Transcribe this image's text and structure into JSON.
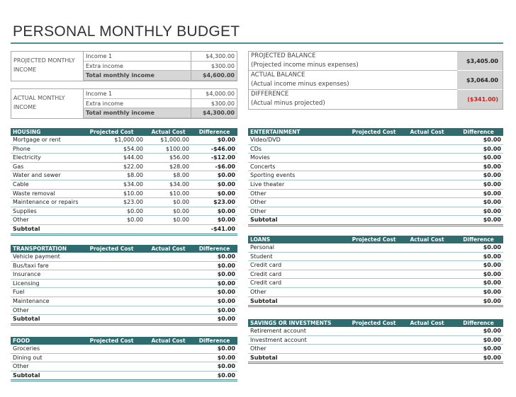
{
  "title": "PERSONAL MONTHLY BUDGET",
  "income_boxes": [
    {
      "label": "PROJECTED MONTHLY INCOME",
      "rows": [
        [
          "Income 1",
          "$4,300.00"
        ],
        [
          "Extra income",
          "$300.00"
        ],
        [
          "Total monthly income",
          "$4,600.00"
        ]
      ]
    },
    {
      "label": "ACTUAL MONTHLY INCOME",
      "rows": [
        [
          "Income 1",
          "$4,000.00"
        ],
        [
          "Extra income",
          "$300.00"
        ],
        [
          "Total monthly income",
          "$4,300.00"
        ]
      ]
    }
  ],
  "balances": [
    {
      "label": "PROJECTED BALANCE",
      "note": "(Projected income minus expenses)",
      "value": "$3,405.00"
    },
    {
      "label": "ACTUAL BALANCE",
      "note": "(Actual income minus expenses)",
      "value": "$3,064.00"
    },
    {
      "label": "DIFFERENCE",
      "note": "(Actual minus projected)",
      "value": "($341.00)"
    }
  ],
  "tables": [
    {
      "header": [
        "HOUSING",
        "Projected Cost",
        "Actual Cost",
        "Difference"
      ],
      "rows": [
        [
          "Mortgage or rent",
          "$1,000.00",
          "$1,000.00",
          "$0.00"
        ],
        [
          "Phone",
          "$54.00",
          "$100.00",
          "-$46.00"
        ],
        [
          "Electricity",
          "$44.00",
          "$56.00",
          "-$12.00"
        ],
        [
          "Gas",
          "$22.00",
          "$28.00",
          "-$6.00"
        ],
        [
          "Water and sewer",
          "$8.00",
          "$8.00",
          "$0.00"
        ],
        [
          "Cable",
          "$34.00",
          "$34.00",
          "$0.00"
        ],
        [
          "Waste removal",
          "$10.00",
          "$10.00",
          "$0.00"
        ],
        [
          "Maintenance or repairs",
          "$23.00",
          "$0.00",
          "$23.00"
        ],
        [
          "Supplies",
          "$0.00",
          "$0.00",
          "$0.00"
        ],
        [
          "Other",
          "$0.00",
          "$0.00",
          "$0.00"
        ]
      ],
      "subtotal": [
        "Subtotal",
        "-$41.00"
      ]
    },
    {
      "header": [
        "TRANSPORTATION",
        "Projected Cost",
        "Actual Cost",
        "Difference"
      ],
      "rows": [
        [
          "Vehicle payment",
          null,
          null,
          "$0.00"
        ],
        [
          "Bus/taxi fare",
          null,
          null,
          "$0.00"
        ],
        [
          "Insurance",
          null,
          null,
          "$0.00"
        ],
        [
          "Licensing",
          null,
          null,
          "$0.00"
        ],
        [
          "Fuel",
          null,
          null,
          "$0.00"
        ],
        [
          "Maintenance",
          null,
          null,
          "$0.00"
        ],
        [
          "Other",
          null,
          null,
          "$0.00"
        ]
      ],
      "subtotal": [
        "Subtotal",
        "$0.00"
      ]
    },
    {
      "header": [
        "FOOD",
        "Projected Cost",
        "Actual Cost",
        "Difference"
      ],
      "rows": [
        [
          "Groceries",
          null,
          null,
          "$0.00"
        ],
        [
          "Dining out",
          null,
          null,
          "$0.00"
        ],
        [
          "Other",
          null,
          null,
          "$0.00"
        ]
      ],
      "subtotal": [
        "Subtotal",
        "$0.00"
      ]
    },
    {
      "header": [
        "ENTERTAINMENT",
        "Projected Cost",
        "Actual Cost",
        "Difference"
      ],
      "rows": [
        [
          "Video/DVD",
          null,
          null,
          "$0.00"
        ],
        [
          "CDs",
          null,
          null,
          "$0.00"
        ],
        [
          "Movies",
          null,
          null,
          "$0.00"
        ],
        [
          "Concerts",
          null,
          null,
          "$0.00"
        ],
        [
          "Sporting events",
          null,
          null,
          "$0.00"
        ],
        [
          "Live theater",
          null,
          null,
          "$0.00"
        ],
        [
          "Other",
          null,
          null,
          "$0.00"
        ],
        [
          "Other",
          null,
          null,
          "$0.00"
        ],
        [
          "Other",
          null,
          null,
          "$0.00"
        ]
      ],
      "subtotal": [
        "Subtotal",
        "$0.00"
      ]
    },
    {
      "header": [
        "LOANS",
        "Projected Cost",
        "Actual Cost",
        "Difference"
      ],
      "rows": [
        [
          "Personal",
          null,
          null,
          "$0.00"
        ],
        [
          "Student",
          null,
          null,
          "$0.00"
        ],
        [
          "Credit card",
          null,
          null,
          "$0.00"
        ],
        [
          "Credit card",
          null,
          null,
          "$0.00"
        ],
        [
          "Credit card",
          null,
          null,
          "$0.00"
        ],
        [
          "Other",
          null,
          null,
          "$0.00"
        ]
      ],
      "subtotal": [
        "Subtotal",
        "$0.00"
      ]
    },
    {
      "header": [
        "SAVINGS OR INVESTMENTS",
        "Projected Cost",
        "Actual Cost",
        "Difference"
      ],
      "rows": [
        [
          "Retirement account",
          null,
          null,
          "$0.00"
        ],
        [
          "Investment account",
          null,
          null,
          "$0.00"
        ],
        [
          "Other",
          null,
          null,
          "$0.00"
        ]
      ],
      "subtotal": [
        "Subtotal",
        "$0.00"
      ]
    }
  ]
}
